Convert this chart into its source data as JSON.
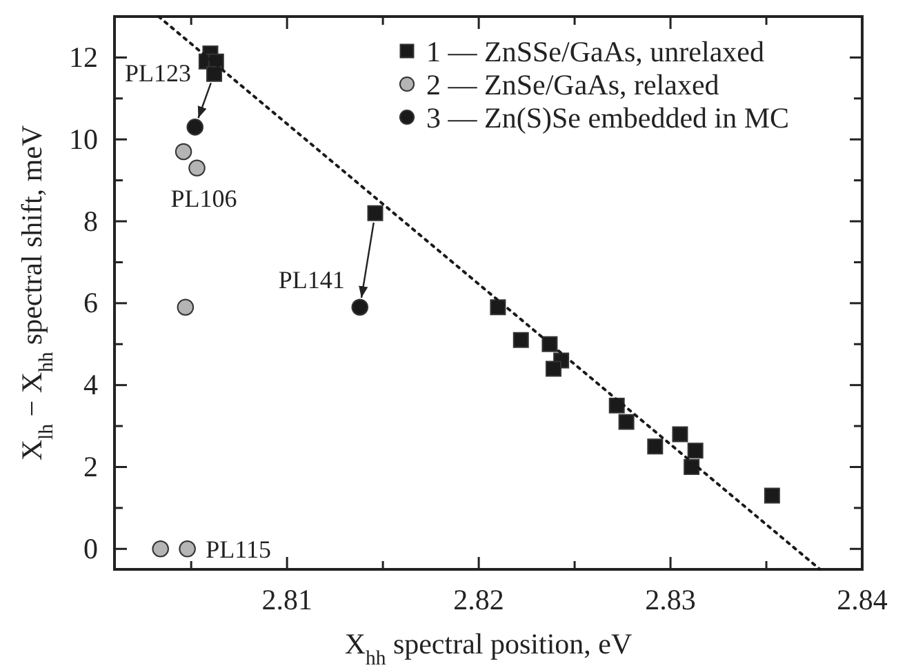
{
  "chart_data": {
    "type": "scatter",
    "xlabel": "X$_{hh}$ spectral position, eV",
    "ylabel": "X$_{lh}$ − X$_{hh}$ spectral shift, meV",
    "xlim": [
      2.801,
      2.84
    ],
    "ylim": [
      -0.5,
      13
    ],
    "xticks": [
      {
        "value": 2.805,
        "label": null
      },
      2.81,
      {
        "value": 2.815,
        "label": null
      },
      2.82,
      {
        "value": 2.825,
        "label": null
      },
      2.83,
      {
        "value": 2.835,
        "label": null
      },
      2.84
    ],
    "yticks": [
      0,
      {
        "value": 1,
        "label": null
      },
      2,
      {
        "value": 3,
        "label": null
      },
      4,
      {
        "value": 5,
        "label": null
      },
      6,
      {
        "value": 7,
        "label": null
      },
      8,
      {
        "value": 9,
        "label": null
      },
      10,
      {
        "value": 11,
        "label": null
      },
      12
    ],
    "grid": false,
    "legend": "top right",
    "series": [
      {
        "name": "1 — ZnSSe/GaAs, unrelaxed",
        "color": "#1a1a1a",
        "marker": "square",
        "x": [
          2.806,
          2.8058,
          2.8063,
          2.8062,
          2.8146,
          2.821,
          2.8222,
          2.8237,
          2.8243,
          2.8239,
          2.8272,
          2.8277,
          2.8292,
          2.8305,
          2.8313,
          2.8311,
          2.8353
        ],
        "values": [
          12.1,
          11.9,
          11.9,
          11.6,
          8.2,
          5.9,
          5.1,
          5.0,
          4.6,
          4.4,
          3.5,
          3.1,
          2.5,
          2.8,
          2.4,
          2.0,
          1.3
        ]
      },
      {
        "name": "2 — ZnSe/GaAs, relaxed",
        "color": "#b4b4b4",
        "marker": "circle",
        "x": [
          2.8046,
          2.8053,
          2.8047,
          2.8034,
          2.8048
        ],
        "values": [
          9.7,
          9.3,
          5.9,
          0,
          0
        ]
      },
      {
        "name": "3 — Zn(S)Se embedded in MC",
        "color": "#1a1a1a",
        "marker": "circle",
        "x": [
          2.8052,
          2.8138
        ],
        "values": [
          10.3,
          5.9
        ]
      },
      {
        "type": "line",
        "color": "#1a1a1a",
        "line_style": "dotted",
        "marker": "none",
        "x": [
          2.8033,
          2.8378
        ],
        "values": [
          13.0,
          -0.5
        ]
      }
    ],
    "annotations": [
      {
        "text": "PL123",
        "x": 2.806,
        "y": 12.1
      },
      {
        "text": "PL106",
        "x": 2.8053,
        "y": 9.3
      },
      {
        "text": "PL141",
        "x": 2.8138,
        "y": 5.9
      },
      {
        "text": "PL115",
        "x": 2.8048,
        "y": 0
      }
    ]
  }
}
